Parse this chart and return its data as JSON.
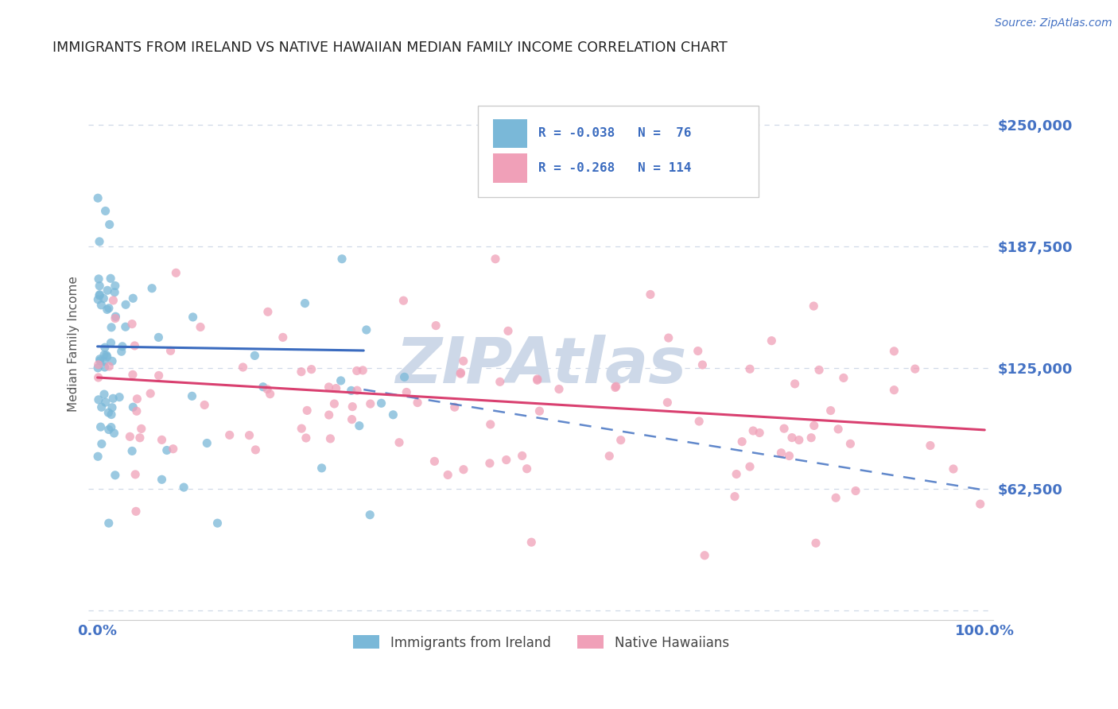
{
  "title": "IMMIGRANTS FROM IRELAND VS NATIVE HAWAIIAN MEDIAN FAMILY INCOME CORRELATION CHART",
  "source": "Source: ZipAtlas.com",
  "ylabel": "Median Family Income",
  "yticks": [
    0,
    62500,
    125000,
    187500,
    250000
  ],
  "ytick_labels": [
    "",
    "$62,500",
    "$125,000",
    "$187,500",
    "$250,000"
  ],
  "ylim": [
    -5000,
    280000
  ],
  "xlim": [
    -1,
    101
  ],
  "legend_line1": "R = -0.038   N =  76",
  "legend_line2": "R = -0.268   N = 114",
  "legend_label_blue": "Immigrants from Ireland",
  "legend_label_pink": "Native Hawaiians",
  "blue_color": "#7ab8d8",
  "pink_color": "#f0a0b8",
  "title_color": "#222222",
  "axis_label_color": "#4472c4",
  "watermark_color": "#cdd8e8",
  "bg_color": "#ffffff",
  "grid_color": "#b0c0d8",
  "blue_trend_x0": 0,
  "blue_trend_y0": 136000,
  "blue_trend_x1": 100,
  "blue_trend_y1": 129000,
  "pink_trend_x0": 0,
  "pink_trend_y0": 120000,
  "pink_trend_x1": 100,
  "pink_trend_y1": 93000,
  "dashed_trend_x0": 0,
  "dashed_trend_y0": 136000,
  "dashed_trend_x1": 100,
  "dashed_trend_y1": 62000,
  "blue_solid_end_x": 30
}
